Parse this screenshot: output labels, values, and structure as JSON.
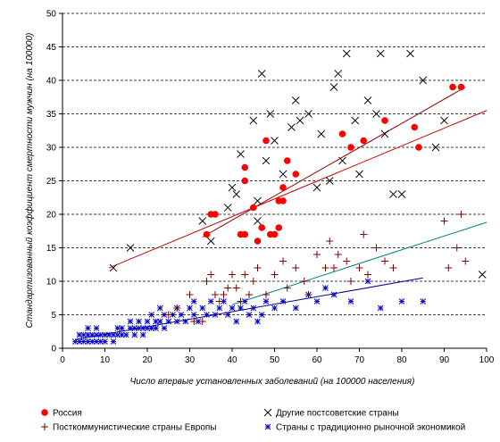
{
  "chart_data": {
    "type": "scatter",
    "title": "",
    "xlabel": "Число впервые установленных заболеваний (на 100000 населения)",
    "ylabel": "Стандартизованный коэффициент смертности мужчин (на 100000)",
    "xlim": [
      0,
      100
    ],
    "ylim": [
      0,
      50
    ],
    "x_ticks": [
      "0",
      "10",
      "20",
      "30",
      "40",
      "50",
      "60",
      "70",
      "80",
      "90",
      "100"
    ],
    "y_ticks": [
      "0",
      "5",
      "10",
      "15",
      "20",
      "25",
      "30",
      "35",
      "40",
      "45",
      "50"
    ],
    "grid": "horizontal dashed",
    "legend_position": "bottom",
    "colors": {
      "russia": "#ff0000",
      "post_soviet": "#000000",
      "post_communist": "#800000",
      "market": "#0000cc",
      "trend_post_soviet": "#cc0000",
      "trend_russia": "#990000",
      "trend_post_communist": "#008080",
      "trend_market": "#000099"
    },
    "series": [
      {
        "name": "Россия",
        "key": "russia",
        "marker": "dot",
        "points": [
          [
            34,
            17
          ],
          [
            35,
            20
          ],
          [
            36,
            20
          ],
          [
            42,
            17
          ],
          [
            43,
            27
          ],
          [
            43,
            25
          ],
          [
            43,
            17
          ],
          [
            45,
            21
          ],
          [
            46,
            16
          ],
          [
            47,
            18
          ],
          [
            48,
            31
          ],
          [
            49,
            17
          ],
          [
            50,
            17
          ],
          [
            51,
            18
          ],
          [
            51,
            22
          ],
          [
            52,
            22
          ],
          [
            52,
            24
          ],
          [
            53,
            28
          ],
          [
            55,
            26
          ],
          [
            66,
            32
          ],
          [
            68,
            30
          ],
          [
            71,
            31
          ],
          [
            76,
            34
          ],
          [
            83,
            33
          ],
          [
            84,
            30
          ],
          [
            92,
            39
          ],
          [
            94,
            39
          ]
        ]
      },
      {
        "name": "Другие постсоветские страны",
        "key": "post_soviet",
        "marker": "x",
        "points": [
          [
            12,
            12
          ],
          [
            16,
            15
          ],
          [
            33,
            19
          ],
          [
            35,
            16
          ],
          [
            39,
            21
          ],
          [
            40,
            24
          ],
          [
            41,
            23
          ],
          [
            42,
            29
          ],
          [
            45,
            34
          ],
          [
            47,
            41
          ],
          [
            46,
            22
          ],
          [
            46,
            19
          ],
          [
            48,
            28
          ],
          [
            49,
            35
          ],
          [
            50,
            31
          ],
          [
            52,
            26
          ],
          [
            54,
            33
          ],
          [
            55,
            37
          ],
          [
            56,
            34
          ],
          [
            58,
            35
          ],
          [
            60,
            24
          ],
          [
            61,
            32
          ],
          [
            63,
            25
          ],
          [
            64,
            39
          ],
          [
            65,
            41
          ],
          [
            67,
            44
          ],
          [
            69,
            34
          ],
          [
            66,
            28
          ],
          [
            70,
            26
          ],
          [
            72,
            37
          ],
          [
            74,
            35
          ],
          [
            75,
            44
          ],
          [
            76,
            32
          ],
          [
            78,
            23
          ],
          [
            80,
            23
          ],
          [
            82,
            44
          ],
          [
            85,
            40
          ],
          [
            90,
            34
          ],
          [
            88,
            30
          ],
          [
            99,
            11
          ]
        ]
      },
      {
        "name": "Посткоммунистические страны Европы",
        "key": "post_communist",
        "marker": "plus",
        "points": [
          [
            25,
            5
          ],
          [
            27,
            6
          ],
          [
            30,
            8
          ],
          [
            31,
            4
          ],
          [
            33,
            4
          ],
          [
            34,
            10
          ],
          [
            35,
            11
          ],
          [
            36,
            8
          ],
          [
            37,
            7
          ],
          [
            38,
            8
          ],
          [
            39,
            9
          ],
          [
            40,
            11
          ],
          [
            41,
            9
          ],
          [
            42,
            7
          ],
          [
            43,
            11
          ],
          [
            44,
            8
          ],
          [
            45,
            10
          ],
          [
            46,
            12
          ],
          [
            48,
            8
          ],
          [
            50,
            11
          ],
          [
            52,
            13
          ],
          [
            53,
            9
          ],
          [
            55,
            12
          ],
          [
            57,
            10
          ],
          [
            58,
            8
          ],
          [
            60,
            14
          ],
          [
            62,
            12
          ],
          [
            63,
            16
          ],
          [
            64,
            12
          ],
          [
            65,
            14
          ],
          [
            67,
            13
          ],
          [
            68,
            10
          ],
          [
            70,
            12
          ],
          [
            71,
            17
          ],
          [
            72,
            11
          ],
          [
            74,
            15
          ],
          [
            76,
            13
          ],
          [
            78,
            12
          ],
          [
            90,
            19
          ],
          [
            91,
            12
          ],
          [
            93,
            15
          ],
          [
            94,
            20
          ],
          [
            95,
            13
          ]
        ]
      },
      {
        "name": "Страны с традиционно рыночной экономикой",
        "key": "market",
        "marker": "star",
        "points": [
          [
            3,
            1
          ],
          [
            4,
            1
          ],
          [
            4,
            2
          ],
          [
            5,
            1
          ],
          [
            5,
            2
          ],
          [
            6,
            1
          ],
          [
            6,
            2
          ],
          [
            6,
            3
          ],
          [
            7,
            1
          ],
          [
            7,
            2
          ],
          [
            8,
            1
          ],
          [
            8,
            2
          ],
          [
            8,
            3
          ],
          [
            9,
            1
          ],
          [
            9,
            2
          ],
          [
            10,
            1
          ],
          [
            10,
            2
          ],
          [
            11,
            2
          ],
          [
            12,
            1
          ],
          [
            12,
            2
          ],
          [
            13,
            2
          ],
          [
            13,
            3
          ],
          [
            14,
            2
          ],
          [
            14,
            3
          ],
          [
            15,
            2
          ],
          [
            16,
            3
          ],
          [
            16,
            4
          ],
          [
            17,
            2
          ],
          [
            17,
            3
          ],
          [
            18,
            3
          ],
          [
            18,
            4
          ],
          [
            19,
            2
          ],
          [
            19,
            3
          ],
          [
            20,
            3
          ],
          [
            20,
            4
          ],
          [
            21,
            3
          ],
          [
            21,
            5
          ],
          [
            22,
            4
          ],
          [
            22,
            3
          ],
          [
            23,
            4
          ],
          [
            23,
            6
          ],
          [
            24,
            3
          ],
          [
            24,
            5
          ],
          [
            25,
            4
          ],
          [
            26,
            5
          ],
          [
            27,
            4
          ],
          [
            27,
            6
          ],
          [
            28,
            5
          ],
          [
            29,
            4
          ],
          [
            30,
            6
          ],
          [
            31,
            5
          ],
          [
            31,
            7
          ],
          [
            32,
            4
          ],
          [
            33,
            6
          ],
          [
            34,
            5
          ],
          [
            35,
            7
          ],
          [
            36,
            5
          ],
          [
            37,
            6
          ],
          [
            38,
            7
          ],
          [
            39,
            5
          ],
          [
            40,
            6
          ],
          [
            41,
            4
          ],
          [
            42,
            6
          ],
          [
            43,
            7
          ],
          [
            44,
            5
          ],
          [
            45,
            6
          ],
          [
            46,
            4
          ],
          [
            47,
            5
          ],
          [
            48,
            7
          ],
          [
            50,
            6
          ],
          [
            52,
            7
          ],
          [
            55,
            6
          ],
          [
            58,
            8
          ],
          [
            60,
            7
          ],
          [
            62,
            9
          ],
          [
            64,
            8
          ],
          [
            68,
            7
          ],
          [
            72,
            10
          ],
          [
            75,
            6
          ],
          [
            80,
            7
          ],
          [
            85,
            7
          ]
        ]
      }
    ],
    "trendlines": [
      {
        "key": "trend_post_soviet",
        "x": [
          11,
          100
        ],
        "y": [
          12,
          35.5
        ]
      },
      {
        "key": "trend_russia",
        "x": [
          33,
          95
        ],
        "y": [
          16.6,
          39
        ]
      },
      {
        "key": "trend_post_communist",
        "x": [
          40,
          100
        ],
        "y": [
          6.5,
          18.8
        ]
      },
      {
        "key": "trend_market",
        "x": [
          3,
          85
        ],
        "y": [
          1.3,
          10.5
        ]
      }
    ]
  }
}
